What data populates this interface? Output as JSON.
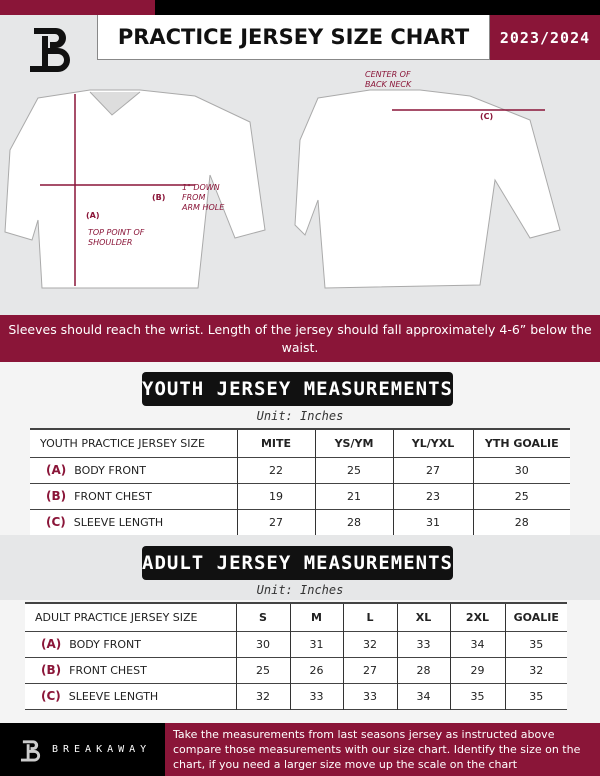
{
  "header": {
    "title": "PRACTICE JERSEY SIZE CHART",
    "season": "2023/2024"
  },
  "diagram": {
    "center_back_neck": "CENTER OF\nBACK NECK",
    "label_a": "(A)",
    "label_b": "(B)",
    "label_c": "(C)",
    "b_note": "1\" DOWN\nFROM\nARM HOLE",
    "a_note": "TOP POINT\nOF SHOULDER"
  },
  "note": "Sleeves should reach the wrist. Length of the jersey should fall approximately 4-6” below the waist.",
  "youth": {
    "title": "YOUTH JERSEY MEASUREMENTS",
    "unit": "Unit: Inches",
    "header": [
      "YOUTH PRACTICE JERSEY SIZE",
      "MITE",
      "YS/YM",
      "YL/YXL",
      "YTH GOALIE"
    ],
    "rows": [
      {
        "letter": "(A)",
        "label": "BODY FRONT",
        "values": [
          "22",
          "25",
          "27",
          "30"
        ]
      },
      {
        "letter": "(B)",
        "label": "FRONT CHEST",
        "values": [
          "19",
          "21",
          "23",
          "25"
        ]
      },
      {
        "letter": "(C)",
        "label": "SLEEVE LENGTH",
        "values": [
          "27",
          "28",
          "31",
          "28"
        ]
      }
    ]
  },
  "adult": {
    "title": "ADULT JERSEY MEASUREMENTS",
    "unit": "Unit: Inches",
    "header": [
      "ADULT PRACTICE JERSEY SIZE",
      "S",
      "M",
      "L",
      "XL",
      "2XL",
      "GOALIE"
    ],
    "rows": [
      {
        "letter": "(A)",
        "label": "BODY FRONT",
        "values": [
          "30",
          "31",
          "32",
          "33",
          "34",
          "35"
        ]
      },
      {
        "letter": "(B)",
        "label": "FRONT CHEST",
        "values": [
          "25",
          "26",
          "27",
          "28",
          "29",
          "32"
        ]
      },
      {
        "letter": "(C)",
        "label": "SLEEVE LENGTH",
        "values": [
          "32",
          "33",
          "33",
          "34",
          "35",
          "35"
        ]
      }
    ]
  },
  "footer": {
    "brand": "BREAKAWAY",
    "instructions": "Take the measurements from last seasons jersey as instructed above compare those measurements  with our size chart. Identify the size on the chart, if you need a larger size move up the scale on the chart"
  },
  "colors": {
    "accent": "#8a1538",
    "dark": "#000000"
  }
}
